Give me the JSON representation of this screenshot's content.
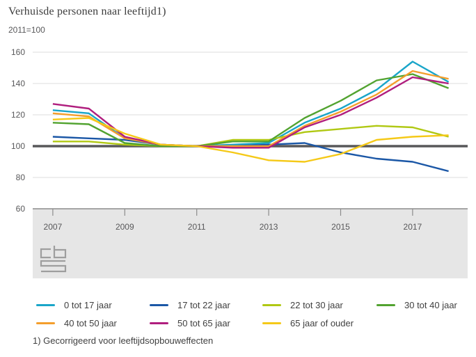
{
  "header": {
    "title": "Verhuisde personen naar leeftijd1)",
    "subtitle": "2011=100"
  },
  "footnote": "1) Gecorrigeerd voor leeftijdsopbouweffecten",
  "colors": {
    "baseline": "#58585a",
    "axis": "#8c8c8c",
    "gridline": "#dcdcdc",
    "plot_band": "#e6e6e6",
    "tick_text": "#58585a",
    "logo": "#9e9e9e"
  },
  "chart_data": {
    "type": "line",
    "title": "Verhuisde personen naar leeftijd1)",
    "subtitle": "2011=100",
    "ylabel": "",
    "xlabel": "",
    "ylim": [
      60,
      160
    ],
    "y_ticks": [
      60,
      80,
      100,
      120,
      140,
      160
    ],
    "baseline": 100,
    "grid": "horizontal",
    "legend_position": "bottom",
    "x": [
      2007,
      2008,
      2009,
      2010,
      2011,
      2012,
      2013,
      2014,
      2015,
      2016,
      2017,
      2018
    ],
    "x_tick_labels": [
      "2007",
      "2009",
      "2011",
      "2013",
      "2015",
      "2017"
    ],
    "x_tick_years": [
      2007,
      2009,
      2011,
      2013,
      2015,
      2017
    ],
    "series": [
      {
        "name": "0 tot 17 jaar",
        "color": "#19a5c9",
        "values": [
          123,
          121,
          105,
          101,
          100,
          101,
          102,
          115,
          124,
          136,
          154,
          141
        ]
      },
      {
        "name": "17 tot 22 jaar",
        "color": "#1b57a6",
        "values": [
          106,
          105,
          104,
          101,
          100,
          100,
          101,
          102,
          96,
          92,
          90,
          84
        ]
      },
      {
        "name": "22 tot 30 jaar",
        "color": "#b0c813",
        "values": [
          103,
          103,
          101,
          100,
          100,
          104,
          104,
          109,
          111,
          113,
          112,
          106
        ]
      },
      {
        "name": "30 tot 40 jaar",
        "color": "#52a330",
        "values": [
          115,
          114,
          102,
          100,
          100,
          103,
          103,
          118,
          129,
          142,
          146,
          137
        ]
      },
      {
        "name": "40 tot 50 jaar",
        "color": "#f49e2c",
        "values": [
          121,
          119,
          105,
          101,
          100,
          100,
          100,
          113,
          122,
          133,
          148,
          143
        ]
      },
      {
        "name": "50 tot 65 jaar",
        "color": "#b01e7e",
        "values": [
          127,
          124,
          106,
          101,
          100,
          99,
          99,
          112,
          120,
          131,
          144,
          140
        ]
      },
      {
        "name": "65 jaar of ouder",
        "color": "#f5c918",
        "values": [
          117,
          118,
          108,
          101,
          100,
          96,
          91,
          90,
          95,
          104,
          106,
          107
        ]
      }
    ]
  },
  "legend": {
    "items": [
      {
        "label": "0 tot 17 jaar",
        "color": "#19a5c9"
      },
      {
        "label": "17 tot 22 jaar",
        "color": "#1b57a6"
      },
      {
        "label": "22 tot 30 jaar",
        "color": "#b0c813"
      },
      {
        "label": "30 tot 40 jaar",
        "color": "#52a330"
      },
      {
        "label": "40 tot 50 jaar",
        "color": "#f49e2c"
      },
      {
        "label": "50 tot 65 jaar",
        "color": "#b01e7e"
      },
      {
        "label": "65 jaar of ouder",
        "color": "#f5c918"
      }
    ]
  }
}
